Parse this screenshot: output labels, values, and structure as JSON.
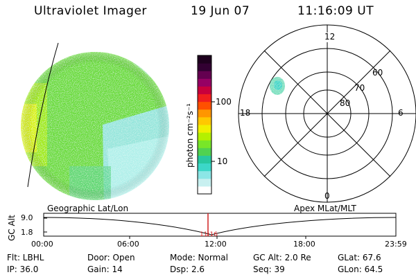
{
  "header": {
    "instrument": "Ultraviolet Imager",
    "date": "19 Jun 07",
    "time": "11:16:09 UT"
  },
  "colorbar": {
    "unit_label": "photon cm⁻²s⁻¹",
    "tick_labels": [
      "100",
      "10"
    ],
    "colors": [
      "#ffffff",
      "#c8f0f0",
      "#8ce6e6",
      "#3cd7c8",
      "#28c8a0",
      "#50d250",
      "#78e628",
      "#b4f000",
      "#f0f000",
      "#ffc800",
      "#ff9600",
      "#ff5000",
      "#f01e1e",
      "#c8003c",
      "#960064",
      "#640050",
      "#320032",
      "#1e001e"
    ]
  },
  "polar_plot": {
    "mlt_labels": {
      "top": "12",
      "bottom": "0",
      "left": "18",
      "right": "6"
    },
    "mlat_labels": [
      "60",
      "70",
      "80"
    ]
  },
  "timeline": {
    "axis_label": "GC Alt",
    "left_title": "Geographic Lat/Lon",
    "right_title": "Apex MLat/MLT",
    "y_ticks": [
      "9.0",
      "1.8"
    ],
    "x_ticks": [
      "00:00",
      "06:00",
      "12:00",
      "18:00",
      "23:59"
    ],
    "current_time_marker": "11:16"
  },
  "status": {
    "flt": "Flt: LBHL",
    "ip": "IP: 36.0",
    "door": "Door: Open",
    "gain": "Gain: 14",
    "mode": "Mode: Normal",
    "dsp": "Dsp:    2.6",
    "gc_alt": "GC Alt: 2.0 Re",
    "seq": "Seq: 39",
    "glat": "GLat:  67.6",
    "glon": "GLon:  64.5"
  }
}
